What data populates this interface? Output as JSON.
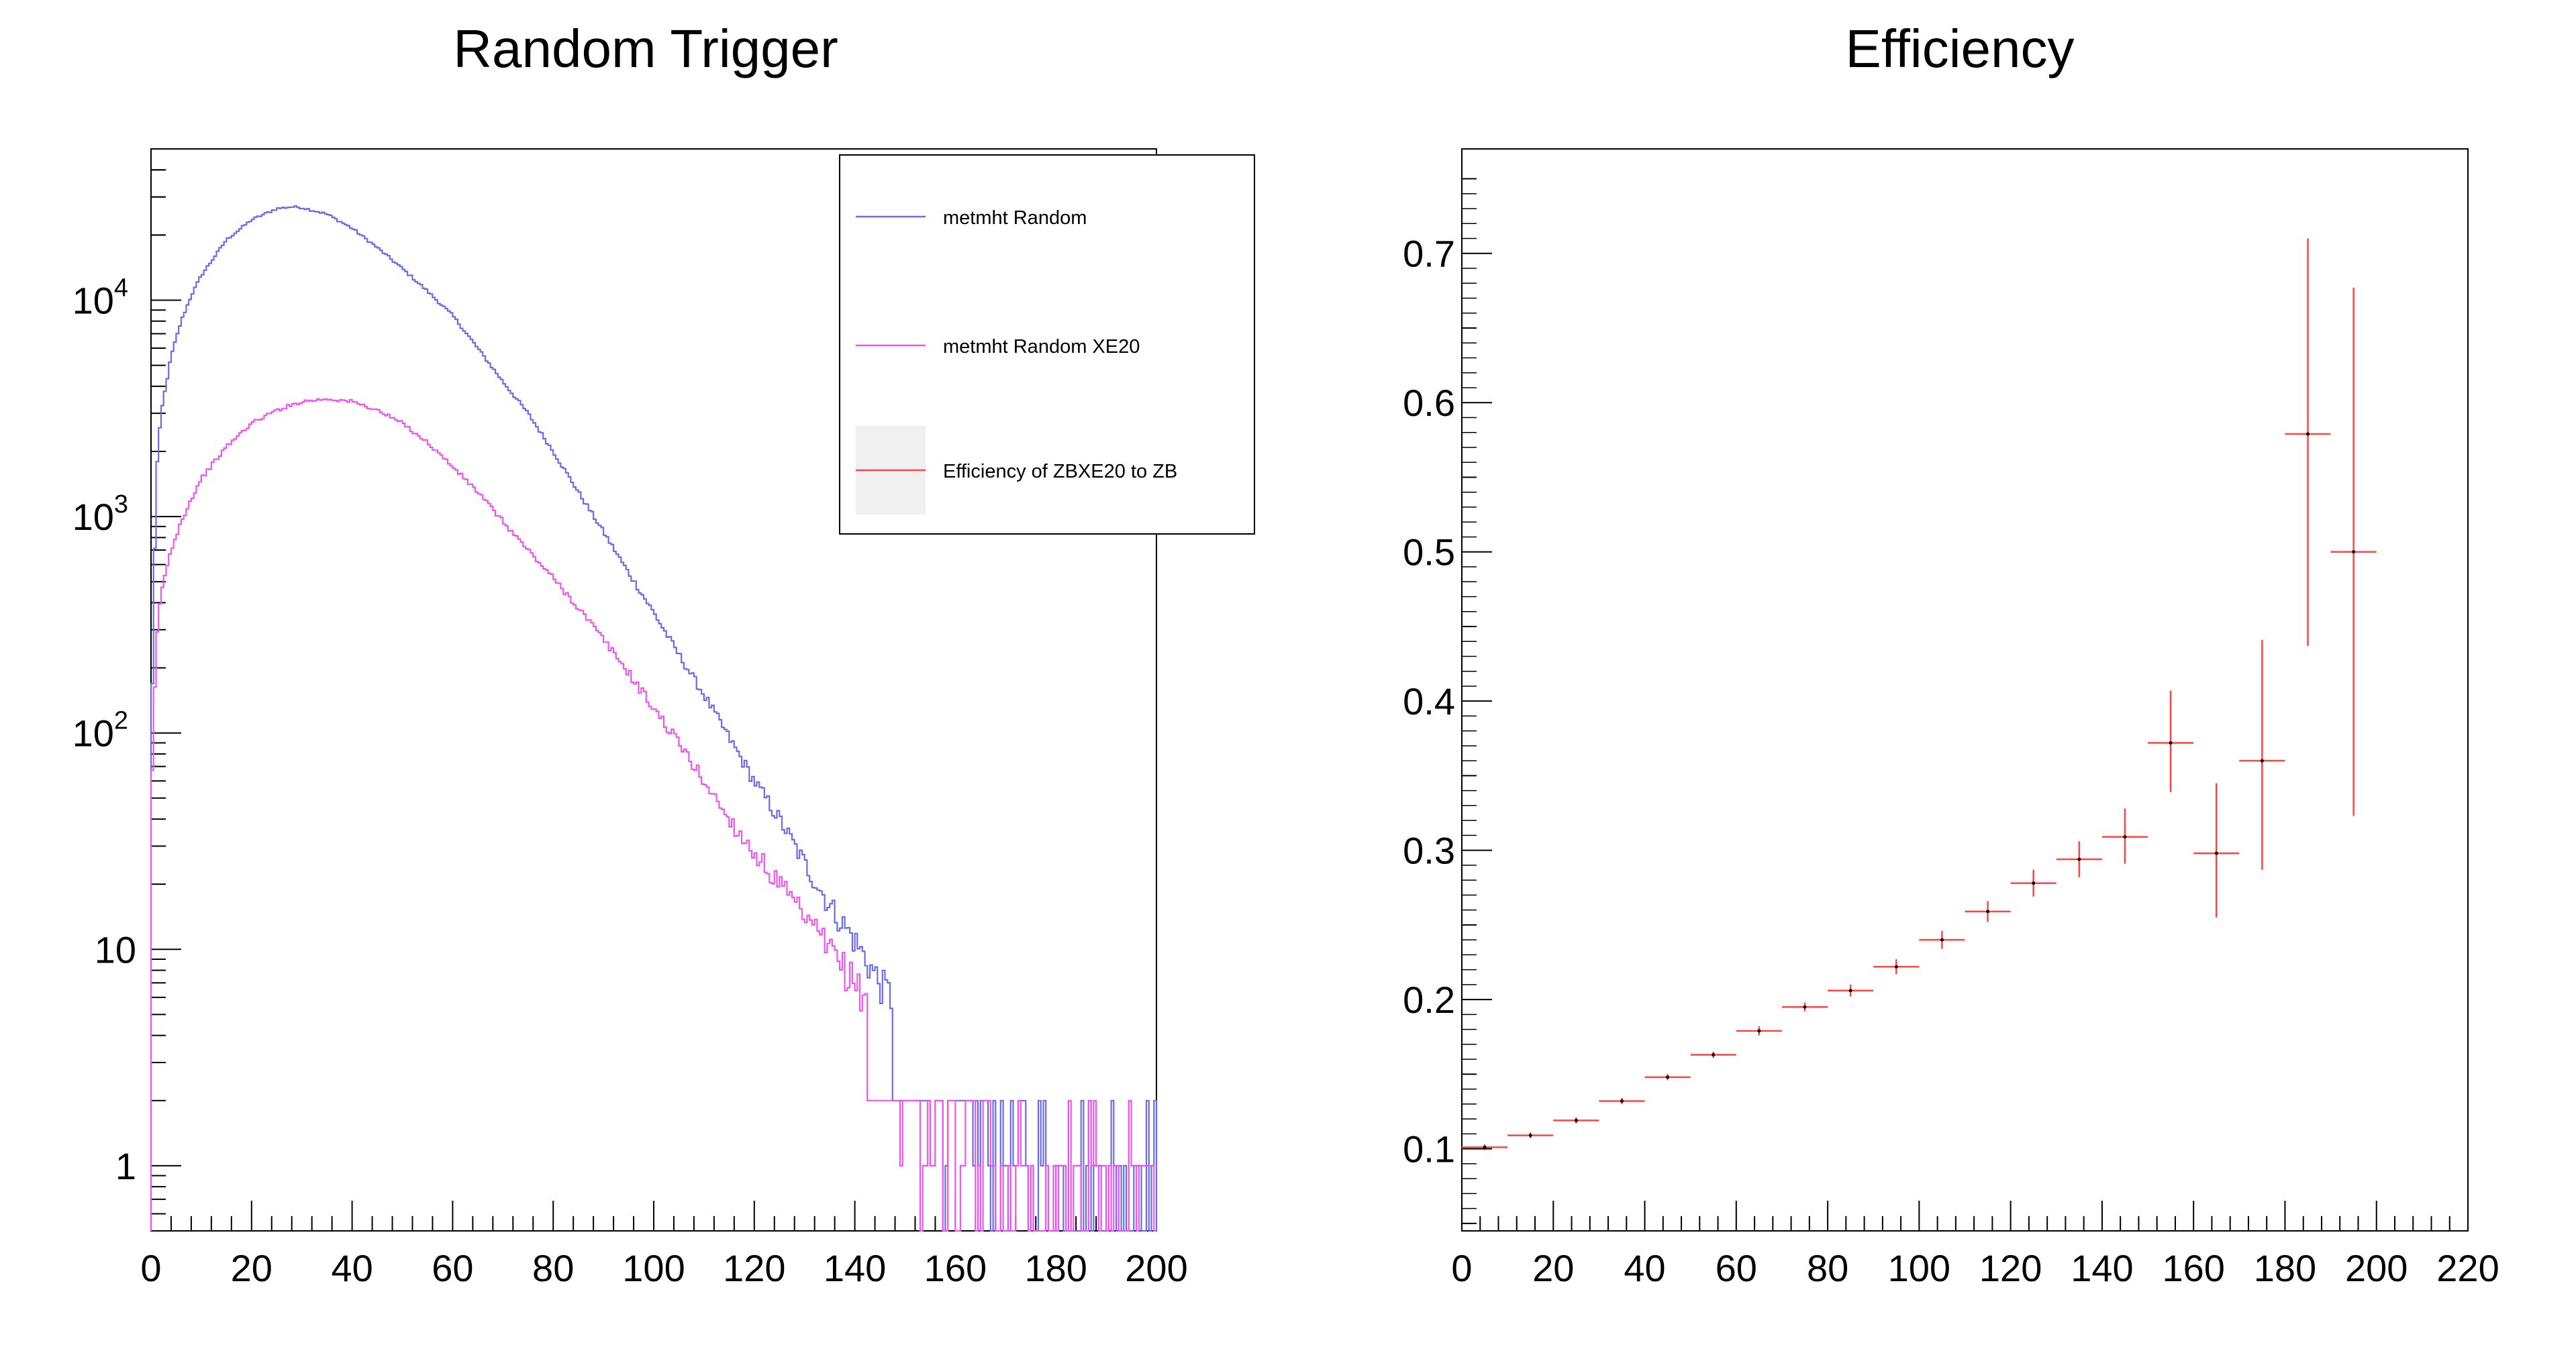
{
  "chart_data": [
    {
      "type": "line",
      "title": "Random Trigger",
      "xlabel": "",
      "ylabel": "",
      "xlim": [
        0,
        200
      ],
      "ylim": [
        0.5,
        50000
      ],
      "yscale": "log",
      "x_ticks": [
        "0",
        "20",
        "40",
        "60",
        "80",
        "100",
        "120",
        "140",
        "160",
        "180",
        "200"
      ],
      "y_ticks": [
        {
          "value": 1,
          "base": "1",
          "exp": ""
        },
        {
          "value": 10,
          "base": "10",
          "exp": ""
        },
        {
          "value": 100,
          "base": "10",
          "exp": "2"
        },
        {
          "value": 1000,
          "base": "10",
          "exp": "3"
        },
        {
          "value": 10000,
          "base": "10",
          "exp": "4"
        }
      ],
      "grid": false,
      "legend_position": "top-right",
      "series": [
        {
          "name": "metmht Random",
          "color": "#6b6bea",
          "style": "step",
          "x": [
            0,
            1,
            2,
            4,
            6,
            8,
            10,
            15,
            20,
            25,
            28,
            30,
            35,
            40,
            45,
            50,
            55,
            60,
            65,
            70,
            75,
            80,
            85,
            90,
            95,
            100,
            105,
            110,
            115,
            120,
            125,
            130,
            135,
            140,
            145,
            150,
            155,
            160,
            165,
            170,
            175,
            180,
            185,
            190,
            195,
            199.5
          ],
          "values": [
            80,
            1500,
            3000,
            5500,
            8000,
            10500,
            13000,
            19000,
            23500,
            26500,
            27000,
            26800,
            25000,
            21500,
            17500,
            14000,
            11000,
            8500,
            6000,
            4200,
            3000,
            2000,
            1300,
            850,
            550,
            360,
            230,
            150,
            95,
            60,
            40,
            25,
            16,
            11,
            7,
            5,
            3.5,
            2.5,
            2,
            1.5,
            1.2,
            1,
            1,
            1,
            1,
            1
          ]
        },
        {
          "name": "metmht Random XE20",
          "color": "#ee55ee",
          "style": "step",
          "x": [
            0,
            1,
            2,
            4,
            6,
            8,
            10,
            15,
            20,
            25,
            30,
            35,
            40,
            45,
            50,
            55,
            60,
            65,
            70,
            75,
            80,
            85,
            90,
            95,
            100,
            105,
            110,
            115,
            120,
            125,
            130,
            135,
            140,
            145,
            150,
            155,
            158,
            160,
            165,
            170,
            175,
            180,
            185,
            190,
            195,
            199.5
          ],
          "values": [
            40,
            250,
            450,
            700,
            950,
            1200,
            1500,
            2100,
            2700,
            3100,
            3400,
            3500,
            3400,
            3100,
            2700,
            2200,
            1700,
            1300,
            950,
            700,
            520,
            380,
            270,
            190,
            130,
            90,
            60,
            40,
            28,
            20,
            14,
            10,
            7,
            5,
            3.5,
            2.5,
            1.5,
            1,
            1,
            1,
            1,
            1,
            1,
            1,
            1,
            1
          ]
        },
        {
          "name": "Efficiency of ZBXE20 to ZB",
          "color": "#ff4444",
          "style": "errorbar-legend-only"
        }
      ]
    },
    {
      "type": "scatter",
      "title": "Efficiency",
      "xlabel": "",
      "ylabel": "",
      "xlim": [
        0,
        220
      ],
      "ylim": [
        0.045,
        0.77
      ],
      "x_ticks": [
        "0",
        "20",
        "40",
        "60",
        "80",
        "100",
        "120",
        "140",
        "160",
        "180",
        "200",
        "220"
      ],
      "y_ticks": [
        "0.1",
        "0.2",
        "0.3",
        "0.4",
        "0.5",
        "0.6",
        "0.7"
      ],
      "grid": false,
      "series": [
        {
          "name": "Efficiency of ZBXE20 to ZB",
          "color": "#ff4444",
          "x": [
            5,
            15,
            25,
            35,
            45,
            55,
            65,
            75,
            85,
            95,
            105,
            115,
            125,
            135,
            145,
            155,
            165,
            175,
            185,
            195
          ],
          "xerr": [
            5,
            5,
            5,
            5,
            5,
            5,
            5,
            5,
            5,
            5,
            5,
            5,
            5,
            5,
            5,
            5,
            5,
            5,
            5,
            5
          ],
          "values": [
            0.101,
            0.109,
            0.119,
            0.132,
            0.148,
            0.163,
            0.179,
            0.195,
            0.206,
            0.222,
            0.24,
            0.259,
            0.278,
            0.294,
            0.309,
            0.372,
            0.298,
            0.36,
            0.579,
            0.5
          ],
          "yerr_low": [
            0.002,
            0.002,
            0.002,
            0.002,
            0.002,
            0.002,
            0.003,
            0.003,
            0.004,
            0.005,
            0.006,
            0.007,
            0.009,
            0.012,
            0.018,
            0.033,
            0.043,
            0.073,
            0.142,
            0.177
          ],
          "yerr_high": [
            0.002,
            0.002,
            0.002,
            0.002,
            0.002,
            0.002,
            0.003,
            0.003,
            0.004,
            0.005,
            0.006,
            0.007,
            0.009,
            0.012,
            0.019,
            0.035,
            0.047,
            0.081,
            0.131,
            0.177
          ]
        }
      ]
    }
  ]
}
